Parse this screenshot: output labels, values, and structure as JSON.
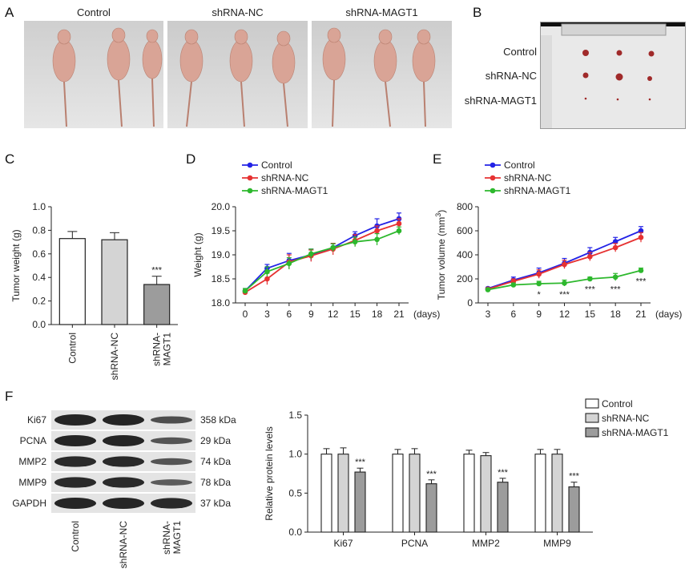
{
  "panels": {
    "A": {
      "letter": "A",
      "groups": [
        "Control",
        "shRNA-NC",
        "shRNA-MAGT1"
      ]
    },
    "B": {
      "letter": "B",
      "rows": [
        "Control",
        "shRNA-NC",
        "shRNA-MAGT1"
      ]
    },
    "C": {
      "letter": "C"
    },
    "D": {
      "letter": "D"
    },
    "E": {
      "letter": "E"
    },
    "F": {
      "letter": "F",
      "blot_rows": [
        {
          "protein": "Ki67",
          "size": "358 kDa"
        },
        {
          "protein": "PCNA",
          "size": "29 kDa"
        },
        {
          "protein": "MMP2",
          "size": "74 kDa"
        },
        {
          "protein": "MMP9",
          "size": "78 kDa"
        },
        {
          "protein": "GAPDH",
          "size": "37 kDa"
        }
      ],
      "blot_lanes": [
        "Control",
        "shRNA-NC",
        "shRNA-MAGT1"
      ]
    }
  },
  "colors": {
    "control": "#2323e6",
    "nc": "#e63232",
    "magt1": "#2db82d",
    "bar_nc": "#d4d4d4",
    "bar_magt1": "#9c9c9c"
  },
  "chart_data": [
    {
      "id": "C",
      "type": "bar",
      "ylabel": "Tumor weight (g)",
      "ylim": [
        0,
        1.0
      ],
      "yticks": [
        "0.0",
        "0.2",
        "0.4",
        "0.6",
        "0.8",
        "1.0"
      ],
      "categories": [
        "Control",
        "shRNA-NC",
        "shRNA-MAGT1"
      ],
      "category_labels": [
        [
          "Control"
        ],
        [
          "shRNA-NC"
        ],
        [
          "shRNA-",
          "MAGT1"
        ]
      ],
      "values": [
        0.73,
        0.72,
        0.34
      ],
      "errors": [
        0.06,
        0.06,
        0.07
      ],
      "annotations": [
        "",
        "",
        "***"
      ]
    },
    {
      "id": "D",
      "type": "line",
      "ylabel": "Weight (g)",
      "xunit": "(days)",
      "ylim": [
        18.0,
        20.0
      ],
      "yticks": [
        "18.0",
        "18.5",
        "19.0",
        "19.5",
        "20.0"
      ],
      "x": [
        0,
        3,
        6,
        9,
        12,
        15,
        18,
        21
      ],
      "series": [
        {
          "name": "Control",
          "color": "#2323e6",
          "values": [
            18.25,
            18.72,
            18.88,
            19.0,
            19.15,
            19.4,
            19.6,
            19.75
          ],
          "errors": [
            0.05,
            0.08,
            0.15,
            0.12,
            0.08,
            0.08,
            0.15,
            0.12
          ]
        },
        {
          "name": "shRNA-NC",
          "color": "#e63232",
          "values": [
            18.22,
            18.5,
            18.85,
            18.98,
            19.12,
            19.3,
            19.5,
            19.65
          ],
          "errors": [
            0.05,
            0.12,
            0.15,
            0.12,
            0.12,
            0.12,
            0.1,
            0.1
          ]
        },
        {
          "name": "shRNA-MAGT1",
          "color": "#2db82d",
          "values": [
            18.25,
            18.65,
            18.82,
            19.02,
            19.15,
            19.27,
            19.32,
            19.5
          ],
          "errors": [
            0.05,
            0.1,
            0.12,
            0.1,
            0.08,
            0.1,
            0.12,
            0.08
          ]
        }
      ]
    },
    {
      "id": "E",
      "type": "line",
      "ylabel_main": "Tumor volume (mm",
      "ylabel_sup": "3",
      "ylabel_end": ")",
      "xunit": "(days)",
      "ylim": [
        0,
        800
      ],
      "yticks": [
        "0",
        "200",
        "400",
        "600",
        "800"
      ],
      "x": [
        3,
        6,
        9,
        12,
        15,
        18,
        21
      ],
      "series": [
        {
          "name": "Control",
          "color": "#2323e6",
          "values": [
            120,
            190,
            250,
            330,
            420,
            510,
            600
          ],
          "errors": [
            10,
            25,
            40,
            40,
            40,
            35,
            35
          ]
        },
        {
          "name": "shRNA-NC",
          "color": "#e63232",
          "values": [
            115,
            180,
            240,
            320,
            385,
            460,
            545
          ],
          "errors": [
            10,
            20,
            35,
            35,
            35,
            35,
            40
          ]
        },
        {
          "name": "shRNA-MAGT1",
          "color": "#2db82d",
          "values": [
            110,
            150,
            160,
            165,
            200,
            215,
            270
          ],
          "errors": [
            10,
            15,
            20,
            25,
            15,
            30,
            20
          ]
        }
      ],
      "annotations": [
        "",
        "",
        "*",
        "***",
        "***",
        "***",
        "***"
      ]
    },
    {
      "id": "F",
      "type": "bar",
      "ylabel": "Relative protein levels",
      "ylim": [
        0,
        1.5
      ],
      "yticks": [
        "0.0",
        "0.5",
        "1.0",
        "1.5"
      ],
      "categories": [
        "Ki67",
        "PCNA",
        "MMP2",
        "MMP9"
      ],
      "series": [
        {
          "name": "Control",
          "values": [
            1.0,
            1.0,
            1.0,
            1.0
          ],
          "errors": [
            0.07,
            0.06,
            0.05,
            0.06
          ]
        },
        {
          "name": "shRNA-NC",
          "values": [
            1.0,
            1.0,
            0.98,
            1.0
          ],
          "errors": [
            0.08,
            0.07,
            0.04,
            0.06
          ]
        },
        {
          "name": "shRNA-MAGT1",
          "values": [
            0.77,
            0.62,
            0.64,
            0.58
          ],
          "errors": [
            0.05,
            0.05,
            0.05,
            0.06
          ]
        }
      ],
      "annotations": [
        "***",
        "***",
        "***",
        "***"
      ]
    }
  ]
}
